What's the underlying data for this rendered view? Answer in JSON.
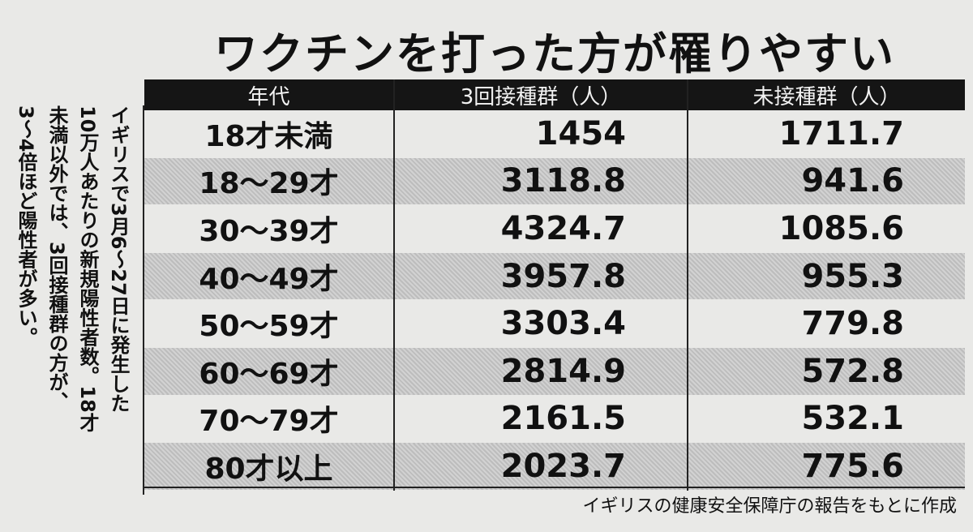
{
  "header": {
    "title": "ワクチンを打った方が罹りやすい"
  },
  "note": {
    "lines": [
      "イギリスで3月6～27日に発生した",
      "10万人あたりの新規陽性者数。18才",
      "未満以外では、3回接種群の方が、",
      "3～4倍ほど陽性者が多い。"
    ]
  },
  "table": {
    "columns": [
      "年代",
      "3回接種群（人）",
      "未接種群（人）"
    ],
    "rows": [
      [
        "18才未満",
        "1454",
        "1711.7"
      ],
      [
        "18～29才",
        "3118.8",
        "941.6"
      ],
      [
        "30～39才",
        "4324.7",
        "1085.6"
      ],
      [
        "40～49才",
        "3957.8",
        "955.3"
      ],
      [
        "50～59才",
        "3303.4",
        "779.8"
      ],
      [
        "60～69才",
        "2814.9",
        "572.8"
      ],
      [
        "70～79才",
        "2161.5",
        "532.1"
      ],
      [
        "80才以上",
        "2023.7",
        "775.6"
      ]
    ]
  },
  "footer": {
    "source": "イギリスの健康安全保障庁の報告をもとに作成"
  }
}
